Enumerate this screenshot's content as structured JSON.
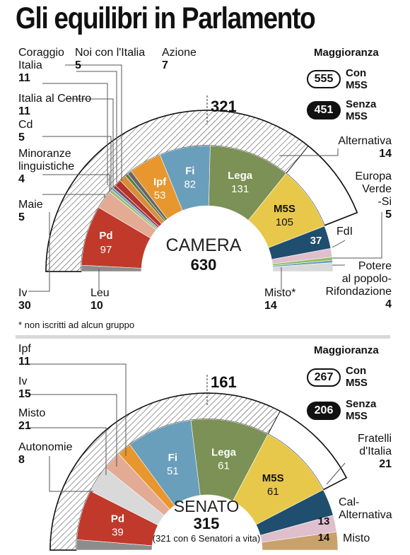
{
  "title": "Gli equilibri in Parlamento",
  "camera": {
    "chamber_label": "CAMERA",
    "total": "630",
    "majority_threshold": "321",
    "maggioranza_label": "Maggioranza",
    "con_value": "555",
    "con_label": [
      "Con",
      "M5S"
    ],
    "senza_value": "451",
    "senza_label": [
      "Senza",
      "M5S"
    ],
    "footnote": "* non iscritti ad alcun gruppo",
    "side_labels": {
      "coraggio": {
        "name": [
          "Coraggio",
          "Italia"
        ],
        "value": "11"
      },
      "noi_con": {
        "name": [
          "Noi con l'Italia"
        ],
        "value": "5"
      },
      "azione": {
        "name": [
          "Azione"
        ],
        "value": "7"
      },
      "italia_centro": {
        "name": [
          "Italia al Centro"
        ],
        "value": "11"
      },
      "cd": {
        "name": [
          "Cd"
        ],
        "value": "5"
      },
      "minoranze": {
        "name": [
          "Minoranze",
          "linguistiche"
        ],
        "value": "4"
      },
      "maie": {
        "name": [
          "Maie"
        ],
        "value": "5"
      },
      "iv": {
        "name": [
          "Iv"
        ],
        "value": "30"
      },
      "leu": {
        "name": [
          "Leu"
        ],
        "value": "10"
      },
      "misto": {
        "name": [
          "Misto*"
        ],
        "value": "14"
      },
      "alternativa": {
        "name": [
          "Alternativa"
        ],
        "value": "14"
      },
      "europa_verde": {
        "name": [
          "Europa",
          "Verde",
          "-Si"
        ],
        "value": "5"
      },
      "potere": {
        "name": [
          "Potere",
          "al popolo-",
          "Rifondazione"
        ],
        "value": "4"
      },
      "fdi": {
        "name": [
          "FdI"
        ],
        "value": ""
      }
    }
  },
  "senato": {
    "chamber_label": "SENATO",
    "total": "315",
    "total_note": "(321 con 6 Senatori a vita)",
    "majority_threshold": "161",
    "maggioranza_label": "Maggioranza",
    "con_value": "267",
    "con_label": [
      "Con",
      "M5S"
    ],
    "senza_value": "206",
    "senza_label": [
      "Senza",
      "M5S"
    ],
    "side_labels": {
      "ipf": {
        "name": [
          "Ipf"
        ],
        "value": "11"
      },
      "iv": {
        "name": [
          "Iv"
        ],
        "value": "15"
      },
      "misto_left": {
        "name": [
          "Misto"
        ],
        "value": "21"
      },
      "autonomie": {
        "name": [
          "Autonomie"
        ],
        "value": "8"
      },
      "fratelli": {
        "name": [
          "Fratelli",
          "d'Italia"
        ],
        "value": "21"
      },
      "cal_alt": {
        "name": [
          "Cal-",
          "Alternativa"
        ],
        "value": ""
      },
      "misto_right": {
        "name": [
          "Misto"
        ],
        "value": ""
      }
    }
  },
  "colors": {
    "pd": "#c0392b",
    "ipf": "#e8962e",
    "fi": "#6a9fbc",
    "lega": "#7b9155",
    "m5s": "#e8c84a",
    "fdi": "#1f4e6e",
    "iv": "#e4ab94",
    "leu": "#8c8c8c",
    "misto": "#d9d9d9",
    "autonomie": "#8c8c8c",
    "cal_alt": "#e0bfcd",
    "misto_sen": "#c9a16b"
  },
  "chart_data": [
    {
      "type": "pie",
      "title": "CAMERA",
      "total": 630,
      "segments": [
        {
          "name": "Leu",
          "value": 10,
          "color": "#8c8c8c"
        },
        {
          "name": "Pd",
          "value": 97,
          "color": "#c0392b"
        },
        {
          "name": "Iv",
          "value": 30,
          "color": "#e4ab94"
        },
        {
          "name": "Maie",
          "value": 5,
          "color": "#9bbf73"
        },
        {
          "name": "Minoranze linguistiche",
          "value": 4,
          "color": "#6a9fbc"
        },
        {
          "name": "Cd",
          "value": 5,
          "color": "#8e3b4b"
        },
        {
          "name": "Italia al Centro",
          "value": 11,
          "color": "#b5332a"
        },
        {
          "name": "Coraggio Italia",
          "value": 11,
          "color": "#d98d3a"
        },
        {
          "name": "Noi con l'Italia",
          "value": 5,
          "color": "#5d7a40"
        },
        {
          "name": "Azione",
          "value": 7,
          "color": "#666666"
        },
        {
          "name": "Ipf",
          "value": 53,
          "color": "#e8962e",
          "label": "Ipf"
        },
        {
          "name": "Fi",
          "value": 82,
          "color": "#6a9fbc",
          "label": "Fi"
        },
        {
          "name": "Lega",
          "value": 131,
          "color": "#7b9155",
          "label": "Lega"
        },
        {
          "name": "M5S",
          "value": 105,
          "color": "#e8c84a",
          "label": "M5S"
        },
        {
          "name": "FdI",
          "value": 37,
          "color": "#1f4e6e",
          "label": ""
        },
        {
          "name": "Alternativa",
          "value": 14,
          "color": "#e0bfcd"
        },
        {
          "name": "Europa Verde-Si",
          "value": 5,
          "color": "#8fbf60"
        },
        {
          "name": "Potere al popolo-Rifondazione",
          "value": 4,
          "color": "#6a9fbc"
        },
        {
          "name": "Misto",
          "value": 14,
          "color": "#d9d9d9"
        }
      ],
      "majority_threshold": 321,
      "majority_with_m5s": 555,
      "majority_without_m5s": 451
    },
    {
      "type": "pie",
      "title": "SENATO",
      "total": 315,
      "segments": [
        {
          "name": "Autonomie",
          "value": 8,
          "color": "#8c8c8c"
        },
        {
          "name": "Pd",
          "value": 39,
          "color": "#c0392b",
          "label": "Pd"
        },
        {
          "name": "Misto",
          "value": 21,
          "color": "#d9d9d9"
        },
        {
          "name": "Iv",
          "value": 15,
          "color": "#e4ab94"
        },
        {
          "name": "Ipf",
          "value": 11,
          "color": "#e8962e"
        },
        {
          "name": "Fi",
          "value": 51,
          "color": "#6a9fbc",
          "label": "Fi"
        },
        {
          "name": "Lega",
          "value": 61,
          "color": "#7b9155",
          "label": "Lega"
        },
        {
          "name": "M5S",
          "value": 61,
          "color": "#e8c84a",
          "label": "M5S"
        },
        {
          "name": "Fratelli d'Italia",
          "value": 21,
          "color": "#1f4e6e"
        },
        {
          "name": "Cal-Alternativa",
          "value": 13,
          "color": "#e0bfcd"
        },
        {
          "name": "Misto",
          "value": 14,
          "color": "#c9a16b"
        }
      ],
      "majority_threshold": 161,
      "majority_with_m5s": 267,
      "majority_without_m5s": 206
    }
  ]
}
